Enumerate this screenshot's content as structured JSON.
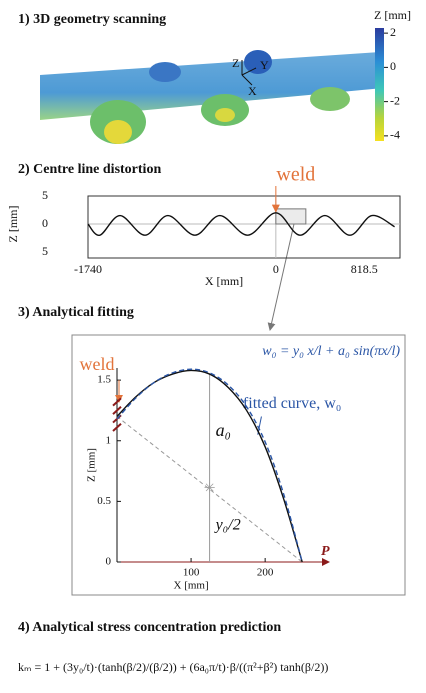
{
  "scan": {
    "title": "1) 3D geometry scanning",
    "colorbar_label": "Z [mm]",
    "clim": [
      -4.3,
      2.3
    ],
    "colorbar_ticks": [
      2,
      0,
      -2,
      -4
    ],
    "axis_labels": [
      "Z",
      "Y",
      "X"
    ]
  },
  "chart_data": [
    {
      "type": "line",
      "title": "2) Centre line distortion",
      "annotation": "weld",
      "xlabel": "X [mm]",
      "ylabel": "Z [mm]",
      "x": [
        -1740,
        -1630,
        -1444,
        -1213,
        -1000,
        -750,
        -519,
        -259,
        0,
        222,
        454,
        685,
        889,
        1100
      ],
      "series": [
        {
          "color": "#111111",
          "values": [
            0,
            -2,
            1.5,
            -2,
            1.5,
            -2,
            1.5,
            -2,
            2,
            -2,
            1.5,
            -2,
            1.5,
            -0.5
          ]
        }
      ],
      "xlim": [
        -1740,
        1150
      ],
      "ylim": [
        -5,
        5
      ],
      "xticks": [
        -1740,
        0,
        818.5
      ],
      "yticks": [
        5,
        0,
        {
          "value": -5,
          "label": "5"
        }
      ],
      "zero_lines": true
    },
    {
      "type": "line",
      "title": "3) Analytical fitting",
      "formula": "w₀ = y₀ x/l + a₀ sin(πx/l)",
      "annotation": "weld",
      "fit_label": "fitted curve, w₀",
      "a_label": "a₀",
      "y_label": "y₀/2",
      "load_label": "P",
      "xlabel": "X [mm]",
      "ylabel": "Z [mm]",
      "x": [
        0,
        25,
        50,
        75,
        100,
        125,
        150,
        175,
        200,
        225,
        250
      ],
      "series": [
        {
          "color": "#111111",
          "style": "solid",
          "values": [
            1.2,
            1.36,
            1.48,
            1.55,
            1.58,
            1.55,
            1.44,
            1.25,
            0.95,
            0.52,
            0
          ]
        },
        {
          "color": "#2a55a5",
          "style": "dashed",
          "values": [
            1.18,
            1.35,
            1.48,
            1.56,
            1.59,
            1.56,
            1.46,
            1.28,
            0.99,
            0.56,
            0
          ]
        }
      ],
      "xlim": [
        0,
        270
      ],
      "ylim": [
        0,
        1.6
      ],
      "xticks": [
        100,
        200
      ],
      "yticks": [
        0,
        0.5,
        1,
        1.5
      ]
    }
  ],
  "stress": {
    "title": "4) Analytical stress concentration prediction",
    "formula": "kₘ = 1 + (3y₀/t)·(tanh(β/2)/(β/2)) + (6a₀π/t)·β/((π²+β²) tanh(β/2))"
  }
}
